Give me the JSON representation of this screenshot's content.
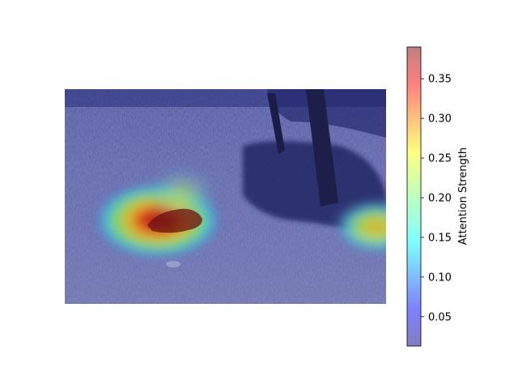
{
  "figure": {
    "type": "attention-heatmap-overlay",
    "background": "#ffffff",
    "colormap": "jet",
    "overlay_alpha": 0.5
  },
  "image_panel": {
    "description_icon": "grassland-scene-with-tree",
    "colors": {
      "grass_dark": "#3b3f7a",
      "grass_light": "#7a7fb3",
      "tree_shadow": "#141a5a",
      "trunk": "#1e1e4a"
    }
  },
  "colorbar": {
    "label": "Attention Strength",
    "vmin": 0.013,
    "vmax": 0.39,
    "ticks": [
      {
        "value": 0.05,
        "label": "0.05"
      },
      {
        "value": 0.1,
        "label": "0.10"
      },
      {
        "value": 0.15,
        "label": "0.15"
      },
      {
        "value": 0.2,
        "label": "0.20"
      },
      {
        "value": 0.25,
        "label": "0.25"
      },
      {
        "value": 0.3,
        "label": "0.30"
      },
      {
        "value": 0.35,
        "label": "0.35"
      }
    ]
  },
  "hotspots": [
    {
      "name": "primary-animal-hotspot",
      "peak": 0.39
    },
    {
      "name": "secondary-right-edge-hotspot",
      "peak": 0.27
    }
  ]
}
